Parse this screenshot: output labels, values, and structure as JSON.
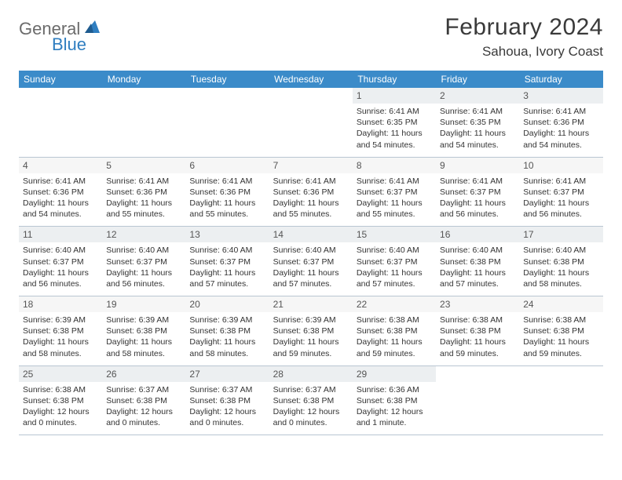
{
  "logo": {
    "general": "General",
    "blue": "Blue"
  },
  "title": "February 2024",
  "location": "Sahoua, Ivory Coast",
  "colors": {
    "header_bg": "#3b8bc9",
    "header_text": "#ffffff",
    "daynum_bg": "#eceff1",
    "daynum_bg_alt": "#f6f6f6",
    "row_border": "#b9c6d2",
    "logo_gray": "#6b6b6b",
    "logo_blue": "#2f7ec0"
  },
  "day_headers": [
    "Sunday",
    "Monday",
    "Tuesday",
    "Wednesday",
    "Thursday",
    "Friday",
    "Saturday"
  ],
  "weeks": [
    [
      null,
      null,
      null,
      null,
      {
        "n": "1",
        "sunrise": "6:41 AM",
        "sunset": "6:35 PM",
        "dl1": "Daylight: 11 hours",
        "dl2": "and 54 minutes."
      },
      {
        "n": "2",
        "sunrise": "6:41 AM",
        "sunset": "6:35 PM",
        "dl1": "Daylight: 11 hours",
        "dl2": "and 54 minutes."
      },
      {
        "n": "3",
        "sunrise": "6:41 AM",
        "sunset": "6:36 PM",
        "dl1": "Daylight: 11 hours",
        "dl2": "and 54 minutes."
      }
    ],
    [
      {
        "n": "4",
        "sunrise": "6:41 AM",
        "sunset": "6:36 PM",
        "dl1": "Daylight: 11 hours",
        "dl2": "and 54 minutes."
      },
      {
        "n": "5",
        "sunrise": "6:41 AM",
        "sunset": "6:36 PM",
        "dl1": "Daylight: 11 hours",
        "dl2": "and 55 minutes."
      },
      {
        "n": "6",
        "sunrise": "6:41 AM",
        "sunset": "6:36 PM",
        "dl1": "Daylight: 11 hours",
        "dl2": "and 55 minutes."
      },
      {
        "n": "7",
        "sunrise": "6:41 AM",
        "sunset": "6:36 PM",
        "dl1": "Daylight: 11 hours",
        "dl2": "and 55 minutes."
      },
      {
        "n": "8",
        "sunrise": "6:41 AM",
        "sunset": "6:37 PM",
        "dl1": "Daylight: 11 hours",
        "dl2": "and 55 minutes."
      },
      {
        "n": "9",
        "sunrise": "6:41 AM",
        "sunset": "6:37 PM",
        "dl1": "Daylight: 11 hours",
        "dl2": "and 56 minutes."
      },
      {
        "n": "10",
        "sunrise": "6:41 AM",
        "sunset": "6:37 PM",
        "dl1": "Daylight: 11 hours",
        "dl2": "and 56 minutes."
      }
    ],
    [
      {
        "n": "11",
        "sunrise": "6:40 AM",
        "sunset": "6:37 PM",
        "dl1": "Daylight: 11 hours",
        "dl2": "and 56 minutes."
      },
      {
        "n": "12",
        "sunrise": "6:40 AM",
        "sunset": "6:37 PM",
        "dl1": "Daylight: 11 hours",
        "dl2": "and 56 minutes."
      },
      {
        "n": "13",
        "sunrise": "6:40 AM",
        "sunset": "6:37 PM",
        "dl1": "Daylight: 11 hours",
        "dl2": "and 57 minutes."
      },
      {
        "n": "14",
        "sunrise": "6:40 AM",
        "sunset": "6:37 PM",
        "dl1": "Daylight: 11 hours",
        "dl2": "and 57 minutes."
      },
      {
        "n": "15",
        "sunrise": "6:40 AM",
        "sunset": "6:37 PM",
        "dl1": "Daylight: 11 hours",
        "dl2": "and 57 minutes."
      },
      {
        "n": "16",
        "sunrise": "6:40 AM",
        "sunset": "6:38 PM",
        "dl1": "Daylight: 11 hours",
        "dl2": "and 57 minutes."
      },
      {
        "n": "17",
        "sunrise": "6:40 AM",
        "sunset": "6:38 PM",
        "dl1": "Daylight: 11 hours",
        "dl2": "and 58 minutes."
      }
    ],
    [
      {
        "n": "18",
        "sunrise": "6:39 AM",
        "sunset": "6:38 PM",
        "dl1": "Daylight: 11 hours",
        "dl2": "and 58 minutes."
      },
      {
        "n": "19",
        "sunrise": "6:39 AM",
        "sunset": "6:38 PM",
        "dl1": "Daylight: 11 hours",
        "dl2": "and 58 minutes."
      },
      {
        "n": "20",
        "sunrise": "6:39 AM",
        "sunset": "6:38 PM",
        "dl1": "Daylight: 11 hours",
        "dl2": "and 58 minutes."
      },
      {
        "n": "21",
        "sunrise": "6:39 AM",
        "sunset": "6:38 PM",
        "dl1": "Daylight: 11 hours",
        "dl2": "and 59 minutes."
      },
      {
        "n": "22",
        "sunrise": "6:38 AM",
        "sunset": "6:38 PM",
        "dl1": "Daylight: 11 hours",
        "dl2": "and 59 minutes."
      },
      {
        "n": "23",
        "sunrise": "6:38 AM",
        "sunset": "6:38 PM",
        "dl1": "Daylight: 11 hours",
        "dl2": "and 59 minutes."
      },
      {
        "n": "24",
        "sunrise": "6:38 AM",
        "sunset": "6:38 PM",
        "dl1": "Daylight: 11 hours",
        "dl2": "and 59 minutes."
      }
    ],
    [
      {
        "n": "25",
        "sunrise": "6:38 AM",
        "sunset": "6:38 PM",
        "dl1": "Daylight: 12 hours",
        "dl2": "and 0 minutes."
      },
      {
        "n": "26",
        "sunrise": "6:37 AM",
        "sunset": "6:38 PM",
        "dl1": "Daylight: 12 hours",
        "dl2": "and 0 minutes."
      },
      {
        "n": "27",
        "sunrise": "6:37 AM",
        "sunset": "6:38 PM",
        "dl1": "Daylight: 12 hours",
        "dl2": "and 0 minutes."
      },
      {
        "n": "28",
        "sunrise": "6:37 AM",
        "sunset": "6:38 PM",
        "dl1": "Daylight: 12 hours",
        "dl2": "and 0 minutes."
      },
      {
        "n": "29",
        "sunrise": "6:36 AM",
        "sunset": "6:38 PM",
        "dl1": "Daylight: 12 hours",
        "dl2": "and 1 minute."
      },
      null,
      null
    ]
  ],
  "labels": {
    "sunrise": "Sunrise: ",
    "sunset": "Sunset: "
  }
}
